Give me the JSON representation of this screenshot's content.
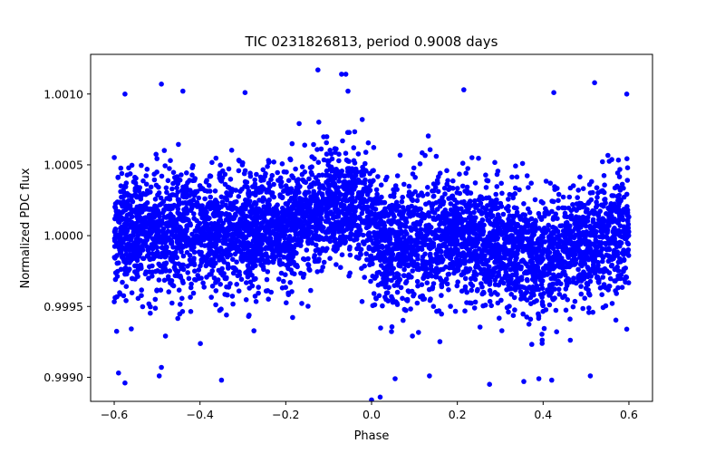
{
  "chart_data": {
    "type": "scatter",
    "title": "TIC 0231826813, period 0.9008 days",
    "xlabel": "Phase",
    "ylabel": "Normalized PDC flux",
    "xlim": [
      -0.655,
      0.655
    ],
    "ylim": [
      0.99883,
      1.00128
    ],
    "x_ticks": [
      -0.6,
      -0.4,
      -0.2,
      0.0,
      0.2,
      0.4,
      0.6
    ],
    "x_tick_labels": [
      "−0.6",
      "−0.4",
      "−0.2",
      "0.0",
      "0.2",
      "0.4",
      "0.6"
    ],
    "y_ticks": [
      0.999,
      0.9995,
      1.0,
      1.0005,
      1.001
    ],
    "y_tick_labels": [
      "0.9990",
      "0.9995",
      "1.0000",
      "1.0005",
      "1.0010"
    ],
    "grid": false,
    "legend": null,
    "marker_color": "#0000ff",
    "phase_range": [
      -0.6,
      0.6
    ],
    "trend": {
      "phase": [
        -0.6,
        -0.5,
        -0.4,
        -0.3,
        -0.2,
        -0.1,
        -0.03,
        0.0,
        0.03,
        0.1,
        0.2,
        0.3,
        0.4,
        0.5,
        0.6
      ],
      "flux": [
        1.0,
        1.00005,
        1.00003,
        1.0,
        1.00005,
        1.00018,
        1.0002,
        1.0001,
        0.99992,
        0.99995,
        1.0,
        0.99993,
        0.99985,
        0.99995,
        1.00005
      ]
    },
    "scatter_std": 0.00021,
    "outliers": [
      {
        "x": -0.59,
        "y": 0.99903
      },
      {
        "x": -0.575,
        "y": 0.99896
      },
      {
        "x": -0.575,
        "y": 1.001
      },
      {
        "x": -0.49,
        "y": 1.00107
      },
      {
        "x": -0.49,
        "y": 0.99907
      },
      {
        "x": -0.495,
        "y": 0.99901
      },
      {
        "x": -0.44,
        "y": 1.00102
      },
      {
        "x": -0.35,
        "y": 0.99898
      },
      {
        "x": -0.295,
        "y": 1.00101
      },
      {
        "x": -0.125,
        "y": 1.00117
      },
      {
        "x": -0.07,
        "y": 1.00114
      },
      {
        "x": -0.06,
        "y": 1.00114
      },
      {
        "x": -0.055,
        "y": 1.00102
      },
      {
        "x": 0.0,
        "y": 0.99884
      },
      {
        "x": 0.02,
        "y": 0.99886
      },
      {
        "x": 0.055,
        "y": 0.99899
      },
      {
        "x": 0.135,
        "y": 0.99901
      },
      {
        "x": 0.215,
        "y": 1.00103
      },
      {
        "x": 0.275,
        "y": 0.99895
      },
      {
        "x": 0.355,
        "y": 0.99897
      },
      {
        "x": 0.39,
        "y": 0.99899
      },
      {
        "x": 0.42,
        "y": 0.99898
      },
      {
        "x": 0.425,
        "y": 1.00101
      },
      {
        "x": 0.51,
        "y": 0.99901
      },
      {
        "x": 0.52,
        "y": 1.00108
      },
      {
        "x": 0.595,
        "y": 1.001
      },
      {
        "x": 0.595,
        "y": 0.99934
      }
    ]
  }
}
